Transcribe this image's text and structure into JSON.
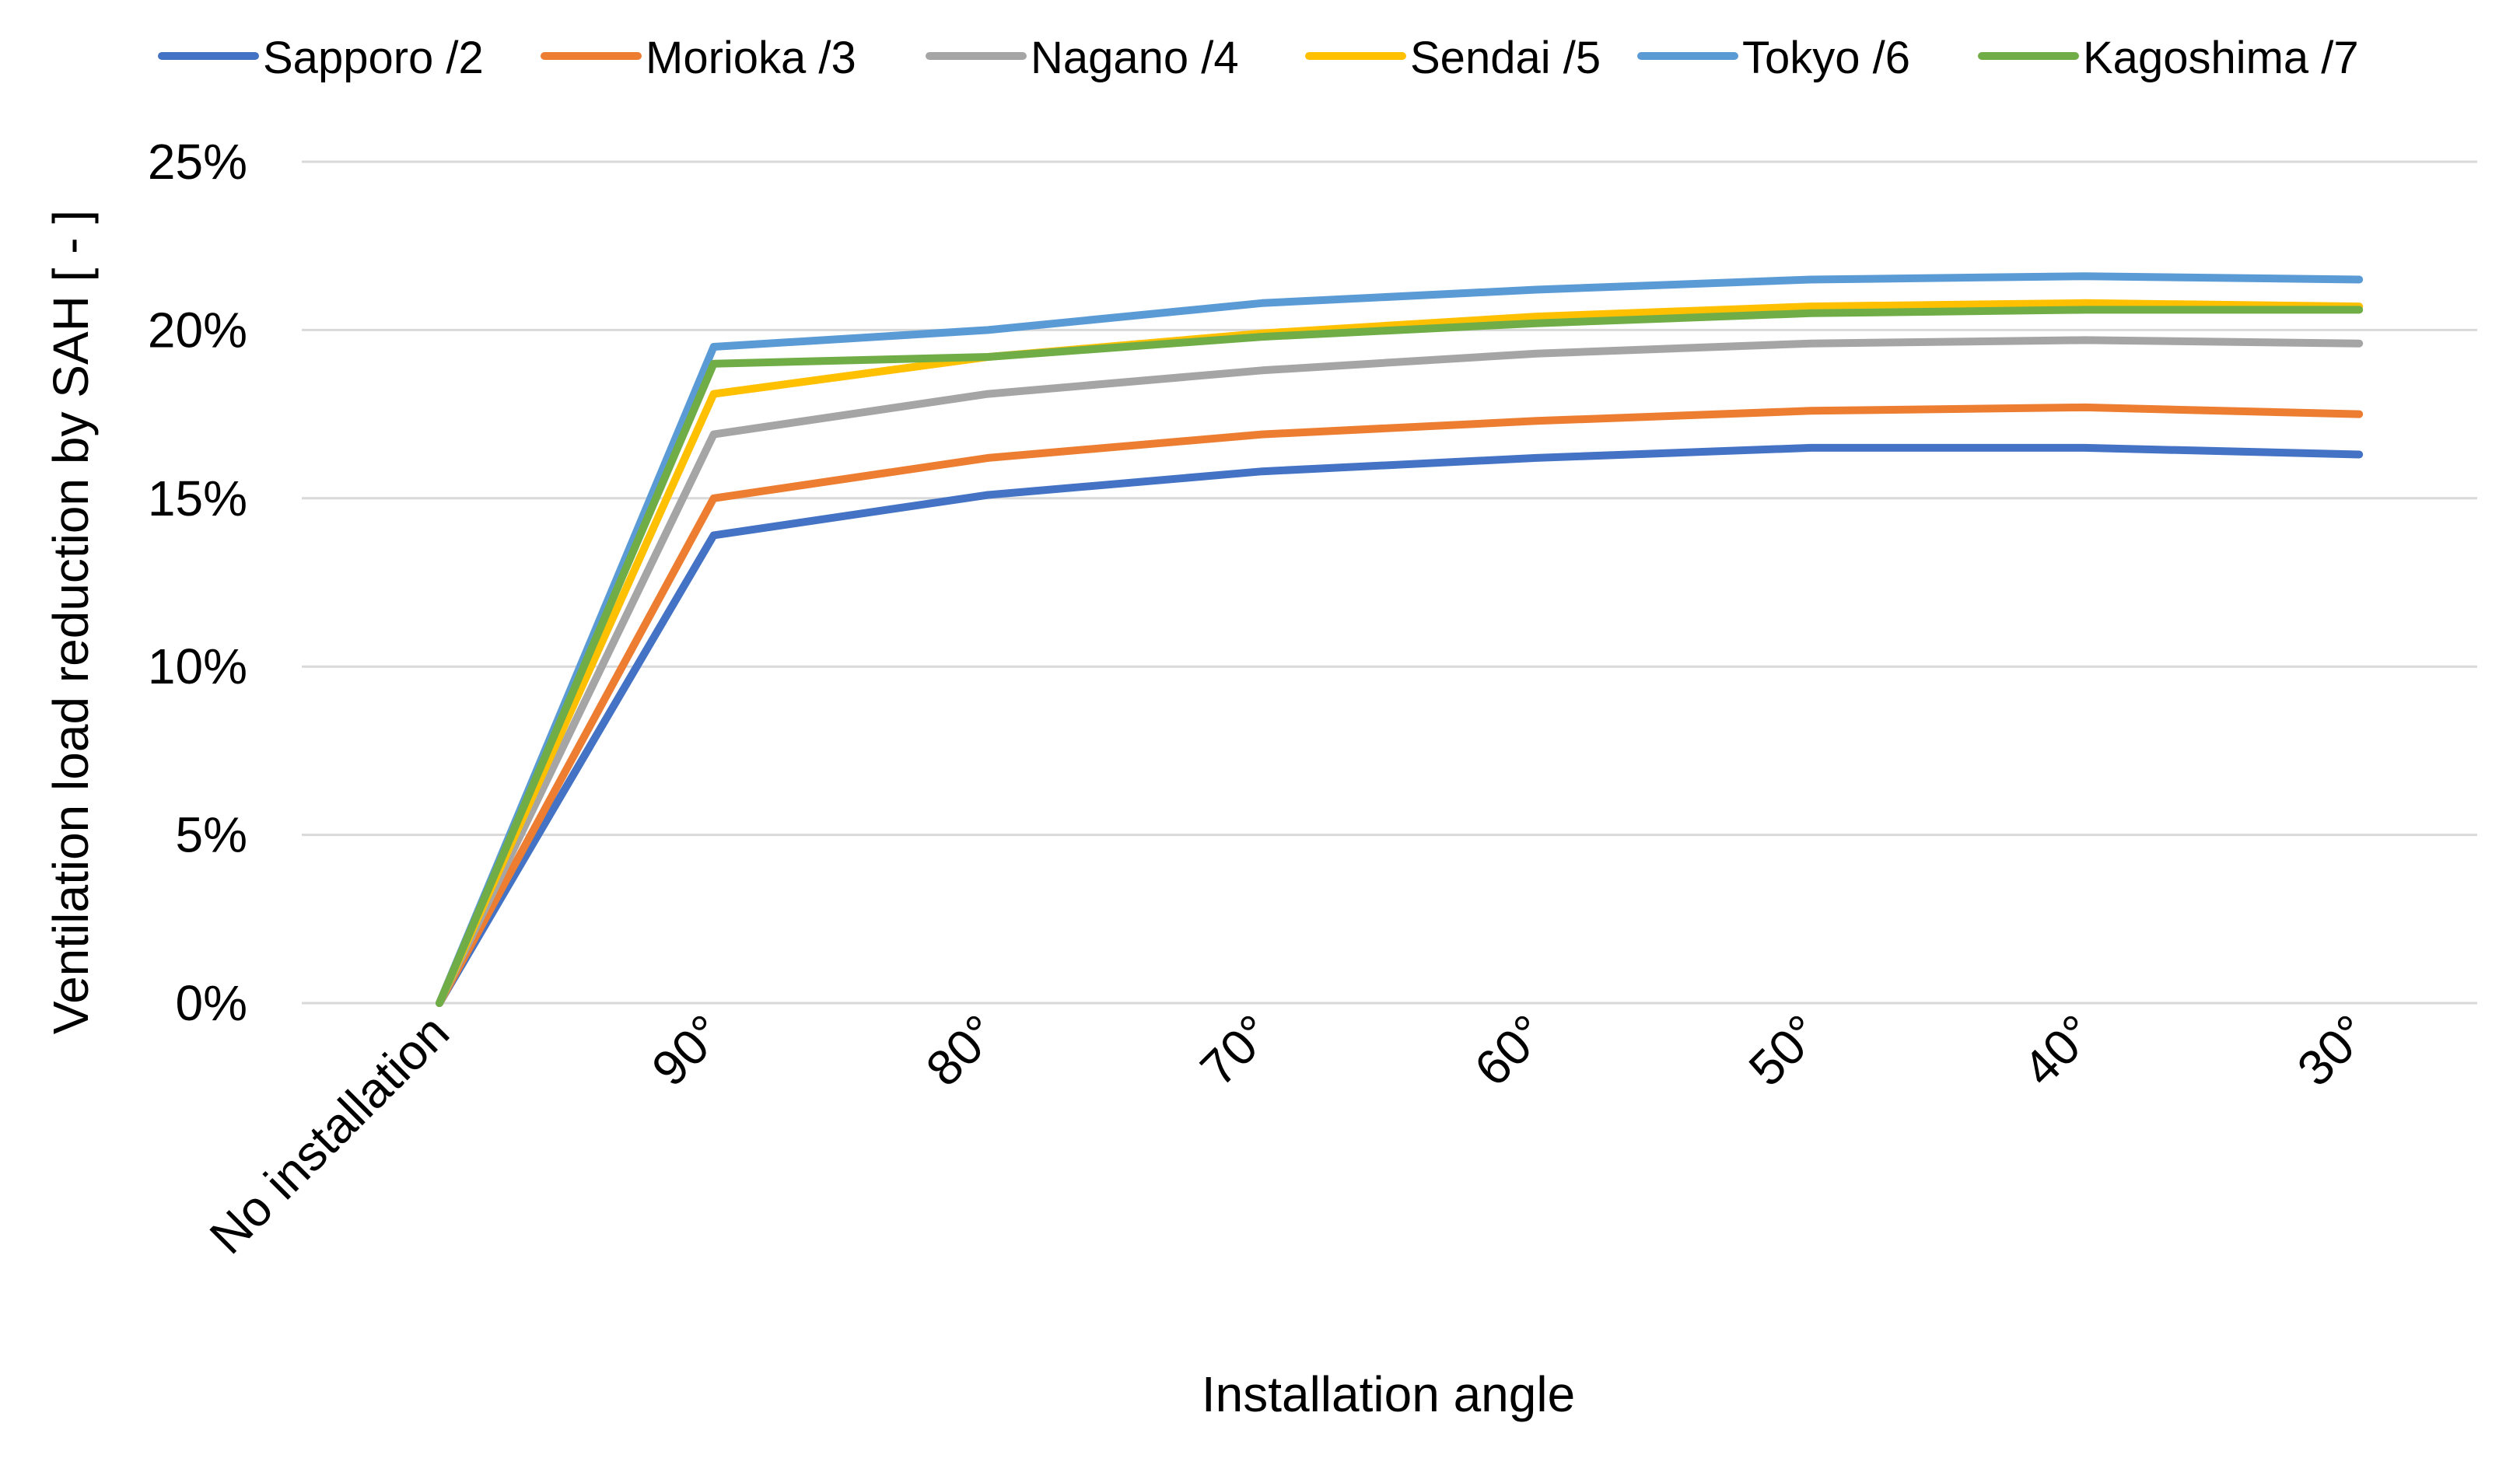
{
  "chart_data": {
    "type": "line",
    "title": "",
    "xlabel": "Installation angle",
    "ylabel": "Ventilation load reduction by SAH [ - ]",
    "categories": [
      "No installation",
      "90°",
      "80°",
      "70°",
      "60°",
      "50°",
      "40°",
      "30°"
    ],
    "ylim": [
      0,
      0.25
    ],
    "yticks": [
      0,
      0.05,
      0.1,
      0.15,
      0.2,
      0.25
    ],
    "ytick_labels": [
      "0%",
      "5%",
      "10%",
      "15%",
      "20%",
      "25%"
    ],
    "grid": true,
    "legend_position": "top",
    "series": [
      {
        "name": "Sapporo /2",
        "color": "#4472C4",
        "values": [
          0,
          0.139,
          0.151,
          0.158,
          0.162,
          0.165,
          0.165,
          0.163
        ]
      },
      {
        "name": "Morioka /3",
        "color": "#ED7D31",
        "values": [
          0,
          0.15,
          0.162,
          0.169,
          0.173,
          0.176,
          0.177,
          0.175
        ]
      },
      {
        "name": "Nagano /4",
        "color": "#A5A5A5",
        "values": [
          0,
          0.169,
          0.181,
          0.188,
          0.193,
          0.196,
          0.197,
          0.196
        ]
      },
      {
        "name": "Sendai /5",
        "color": "#FFC000",
        "values": [
          0,
          0.181,
          0.192,
          0.199,
          0.204,
          0.207,
          0.208,
          0.207
        ]
      },
      {
        "name": "Tokyo /6",
        "color": "#5B9BD5",
        "values": [
          0,
          0.195,
          0.2,
          0.208,
          0.212,
          0.215,
          0.216,
          0.215
        ]
      },
      {
        "name": "Kagoshima /7",
        "color": "#70AD47",
        "values": [
          0,
          0.19,
          0.192,
          0.198,
          0.202,
          0.205,
          0.206,
          0.206
        ]
      }
    ]
  }
}
